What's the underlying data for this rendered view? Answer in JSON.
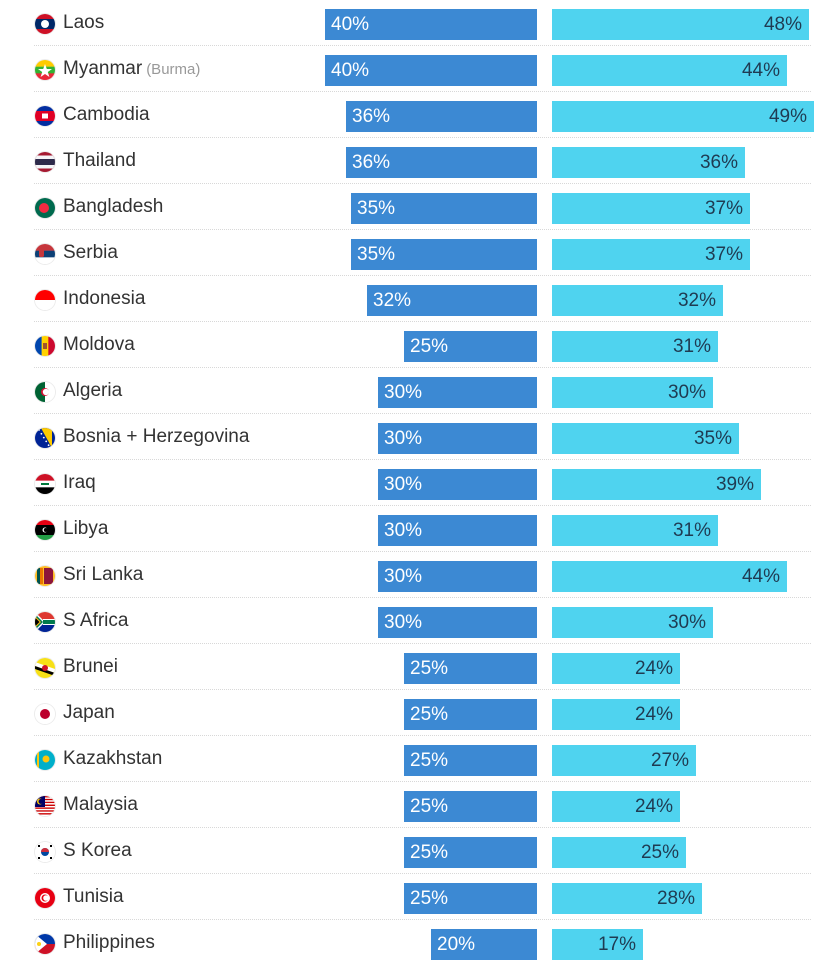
{
  "chart_data": {
    "type": "bar",
    "orientation": "horizontal-diverging",
    "title": "",
    "categories": [
      "Laos",
      "Myanmar",
      "Cambodia",
      "Thailand",
      "Bangladesh",
      "Serbia",
      "Indonesia",
      "Moldova",
      "Algeria",
      "Bosnia + Herzegovina",
      "Iraq",
      "Libya",
      "Sri Lanka",
      "S Africa",
      "Brunei",
      "Japan",
      "Kazakhstan",
      "Malaysia",
      "S Korea",
      "Tunisia",
      "Philippines"
    ],
    "category_notes": {
      "Myanmar": "(Burma)"
    },
    "series": [
      {
        "name": "left",
        "color": "#3c89d3",
        "values": [
          40,
          40,
          36,
          36,
          35,
          35,
          32,
          25,
          30,
          30,
          30,
          30,
          30,
          30,
          25,
          25,
          25,
          25,
          25,
          25,
          20
        ],
        "labels": [
          "40%",
          "40%",
          "36%",
          "36%",
          "35%",
          "35%",
          "32%",
          "25%",
          "30%",
          "30%",
          "30%",
          "30%",
          "30%",
          "30%",
          "25%",
          "25%",
          "25%",
          "25%",
          "25%",
          "25%",
          "20%"
        ]
      },
      {
        "name": "right",
        "color": "#4fd3ef",
        "values": [
          48,
          44,
          49,
          36,
          37,
          37,
          32,
          31,
          30,
          35,
          39,
          31,
          44,
          30,
          24,
          24,
          27,
          24,
          25,
          28,
          17
        ],
        "labels": [
          "48%",
          "44%",
          "49%",
          "36%",
          "37%",
          "37%",
          "32%",
          "31%",
          "30%",
          "35%",
          "39%",
          "31%",
          "44%",
          "30%",
          "24%",
          "24%",
          "27%",
          "24%",
          "25%",
          "28%",
          "17%"
        ]
      }
    ],
    "unit": "%",
    "grid": false
  },
  "flags": [
    {
      "country": "Laos",
      "icon": "laos-flag-icon",
      "colors": [
        "#ce1126",
        "#002868",
        "#ffffff"
      ]
    },
    {
      "country": "Myanmar",
      "icon": "myanmar-flag-icon",
      "colors": [
        "#fecb00",
        "#34b233",
        "#ea2839",
        "#ffffff"
      ]
    },
    {
      "country": "Cambodia",
      "icon": "cambodia-flag-icon",
      "colors": [
        "#032ea1",
        "#e00025",
        "#ffffff"
      ]
    },
    {
      "country": "Thailand",
      "icon": "thailand-flag-icon",
      "colors": [
        "#a51931",
        "#f4f5f8",
        "#2d2a4a"
      ]
    },
    {
      "country": "Bangladesh",
      "icon": "bangladesh-flag-icon",
      "colors": [
        "#006a4e",
        "#f42a41"
      ]
    },
    {
      "country": "Serbia",
      "icon": "serbia-flag-icon",
      "colors": [
        "#c6363c",
        "#0c4076",
        "#ffffff"
      ]
    },
    {
      "country": "Indonesia",
      "icon": "indonesia-flag-icon",
      "colors": [
        "#ff0000",
        "#ffffff"
      ]
    },
    {
      "country": "Moldova",
      "icon": "moldova-flag-icon",
      "colors": [
        "#0046ae",
        "#ffd200",
        "#cc092f"
      ]
    },
    {
      "country": "Algeria",
      "icon": "algeria-flag-icon",
      "colors": [
        "#006233",
        "#ffffff",
        "#d21034"
      ]
    },
    {
      "country": "Bosnia + Herzegovina",
      "icon": "bosnia-flag-icon",
      "colors": [
        "#002395",
        "#fecb00",
        "#ffffff"
      ]
    },
    {
      "country": "Iraq",
      "icon": "iraq-flag-icon",
      "colors": [
        "#ce1126",
        "#ffffff",
        "#000000",
        "#007a3d"
      ]
    },
    {
      "country": "Libya",
      "icon": "libya-flag-icon",
      "colors": [
        "#e70013",
        "#000000",
        "#239e46",
        "#ffffff"
      ]
    },
    {
      "country": "Sri Lanka",
      "icon": "sri-lanka-flag-icon",
      "colors": [
        "#ffbe29",
        "#8d153a",
        "#00534e",
        "#eb7400"
      ]
    },
    {
      "country": "S Africa",
      "icon": "south-africa-flag-icon",
      "colors": [
        "#007a4d",
        "#de3831",
        "#002395",
        "#ffb612",
        "#000000",
        "#ffffff"
      ]
    },
    {
      "country": "Brunei",
      "icon": "brunei-flag-icon",
      "colors": [
        "#f7e017",
        "#ffffff",
        "#000000",
        "#cf1126"
      ]
    },
    {
      "country": "Japan",
      "icon": "japan-flag-icon",
      "colors": [
        "#ffffff",
        "#bc002d"
      ]
    },
    {
      "country": "Kazakhstan",
      "icon": "kazakhstan-flag-icon",
      "colors": [
        "#00afca",
        "#fec50c"
      ]
    },
    {
      "country": "Malaysia",
      "icon": "malaysia-flag-icon",
      "colors": [
        "#cc0001",
        "#ffffff",
        "#010066",
        "#ffcc00"
      ]
    },
    {
      "country": "S Korea",
      "icon": "south-korea-flag-icon",
      "colors": [
        "#ffffff",
        "#cd2e3a",
        "#0047a0",
        "#000000"
      ]
    },
    {
      "country": "Tunisia",
      "icon": "tunisia-flag-icon",
      "colors": [
        "#e70013",
        "#ffffff"
      ]
    },
    {
      "country": "Philippines",
      "icon": "philippines-flag-icon",
      "colors": [
        "#0038a8",
        "#ce1126",
        "#ffffff",
        "#fcd116"
      ]
    }
  ]
}
